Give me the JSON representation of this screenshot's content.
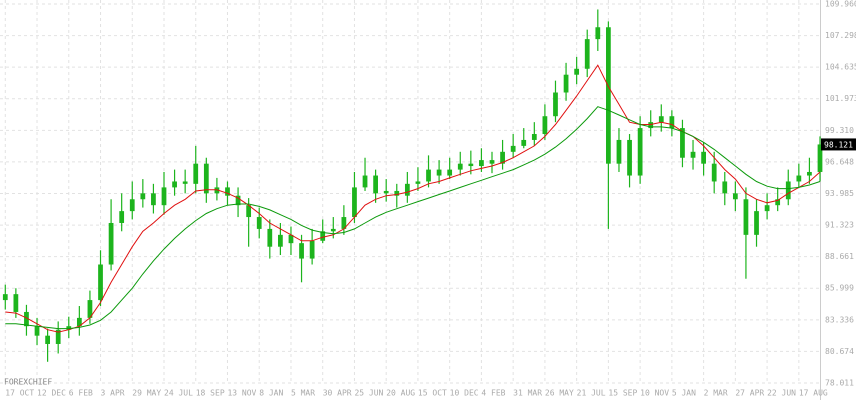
{
  "chart_data": {
    "type": "candlestick",
    "watermark": "FOREXCHIEF",
    "color": "#1db41d",
    "grid": true,
    "xlim": [
      -0.5,
      77
    ],
    "ylim": [
      78.011,
      109.96
    ],
    "yticks": [
      {
        "value": 109.96,
        "label": "109.960"
      },
      107.298,
      104.635,
      101.973,
      {
        "value": 99.31,
        "label": "99.310"
      },
      96.648,
      93.985,
      91.323,
      88.661,
      85.999,
      83.336,
      80.674,
      78.011
    ],
    "xticks": [
      {
        "value": 0,
        "label": "17 OCT"
      },
      {
        "value": 3,
        "label": "12 DEC"
      },
      {
        "value": 6,
        "label": "6 FEB"
      },
      {
        "value": 9,
        "label": "3 APR"
      },
      {
        "value": 12,
        "label": "29 MAY"
      },
      {
        "value": 15,
        "label": "24 JUL"
      },
      {
        "value": 18,
        "label": "18 SEP"
      },
      {
        "value": 21,
        "label": "13 NOV"
      },
      {
        "value": 24,
        "label": "8 JAN"
      },
      {
        "value": 27,
        "label": "5 MAR"
      },
      {
        "value": 30,
        "label": "30 APR"
      },
      {
        "value": 33,
        "label": "25 JUN"
      },
      {
        "value": 36,
        "label": "20 AUG"
      },
      {
        "value": 39,
        "label": "15 OCT"
      },
      {
        "value": 42,
        "label": "10 DEC"
      },
      {
        "value": 45,
        "label": "4 FEB"
      },
      {
        "value": 48,
        "label": "31 MAR"
      },
      {
        "value": 51,
        "label": "26 MAY"
      },
      {
        "value": 54,
        "label": "21 JUL"
      },
      {
        "value": 57,
        "label": "15 SEP"
      },
      {
        "value": 60,
        "label": "10 NOV"
      },
      {
        "value": 63,
        "label": "5 JAN"
      },
      {
        "value": 66,
        "label": "2 MAR"
      },
      {
        "value": 69,
        "label": "27 APR"
      },
      {
        "value": 72,
        "label": "22 JUN"
      },
      {
        "value": 75,
        "label": "17 AUG"
      }
    ],
    "x": [
      0,
      1,
      2,
      3,
      4,
      5,
      6,
      7,
      8,
      9,
      10,
      11,
      12,
      13,
      14,
      15,
      16,
      17,
      18,
      19,
      20,
      21,
      22,
      23,
      24,
      25,
      26,
      27,
      28,
      29,
      30,
      31,
      32,
      33,
      34,
      35,
      36,
      37,
      38,
      39,
      40,
      41,
      42,
      43,
      44,
      45,
      46,
      47,
      48,
      49,
      50,
      51,
      52,
      53,
      54,
      55,
      56,
      57,
      58,
      59,
      60,
      61,
      62,
      63,
      64,
      65,
      66,
      67,
      68,
      69,
      70,
      71,
      72,
      73,
      74,
      75,
      76,
      77
    ],
    "open": [
      85.0,
      85.5,
      84.0,
      82.8,
      82.0,
      81.3,
      82.5,
      82.8,
      83.5,
      85.0,
      88.0,
      91.5,
      92.5,
      93.5,
      94.0,
      93.0,
      94.5,
      95.0,
      94.8,
      96.5,
      94.0,
      94.5,
      93.8,
      93.0,
      92.0,
      91.0,
      89.5,
      90.5,
      89.8,
      88.5,
      90.0,
      90.8,
      91.0,
      92.0,
      94.5,
      95.5,
      94.0,
      94.2,
      93.8,
      94.8,
      95.0,
      96.0,
      95.5,
      96.0,
      96.5,
      96.3,
      96.8,
      96.5,
      97.5,
      98.0,
      98.5,
      99.0,
      100.5,
      102.5,
      104.0,
      104.5,
      107.0,
      108.0,
      96.5,
      98.5,
      95.5,
      99.5,
      100.0,
      100.5,
      99.5,
      97.0,
      97.5,
      96.5,
      95.0,
      94.0,
      93.5,
      90.5,
      92.5,
      93.0,
      93.5,
      95.0,
      95.5,
      95.8
    ],
    "high": [
      86.3,
      86.0,
      84.6,
      83.5,
      82.6,
      83.2,
      83.6,
      84.5,
      85.8,
      89.2,
      93.5,
      94.0,
      95.0,
      95.2,
      94.8,
      95.8,
      96.0,
      96.0,
      98.0,
      97.0,
      95.3,
      95.0,
      94.5,
      93.6,
      92.8,
      91.8,
      91.5,
      91.2,
      90.5,
      91.0,
      91.8,
      92.0,
      93.0,
      95.8,
      97.0,
      96.0,
      95.2,
      94.8,
      95.8,
      96.2,
      97.2,
      96.8,
      97.0,
      97.5,
      97.6,
      97.8,
      97.5,
      98.5,
      99.0,
      99.5,
      100.0,
      101.5,
      103.5,
      105.0,
      105.5,
      107.8,
      109.5,
      108.5,
      99.5,
      99.0,
      100.5,
      101.0,
      101.5,
      101.0,
      100.2,
      98.5,
      98.3,
      97.5,
      95.8,
      95.0,
      94.5,
      93.5,
      94.0,
      94.5,
      96.0,
      96.5,
      97.0,
      98.8
    ],
    "low": [
      84.2,
      83.5,
      82.0,
      81.2,
      79.8,
      80.5,
      81.8,
      82.0,
      83.0,
      84.5,
      87.5,
      90.8,
      91.8,
      92.8,
      92.3,
      92.2,
      93.8,
      94.0,
      94.0,
      93.2,
      93.4,
      93.0,
      92.0,
      89.5,
      90.2,
      88.5,
      88.8,
      88.8,
      86.5,
      88.0,
      89.8,
      90.2,
      90.5,
      91.5,
      94.2,
      93.2,
      93.3,
      92.8,
      93.2,
      94.2,
      94.5,
      94.8,
      95.2,
      95.5,
      95.6,
      95.8,
      95.7,
      96.0,
      97.0,
      97.8,
      98.0,
      98.5,
      100.0,
      101.8,
      103.2,
      103.8,
      106.0,
      91.0,
      95.8,
      94.5,
      94.8,
      98.8,
      99.2,
      98.8,
      96.2,
      96.0,
      95.5,
      94.0,
      93.0,
      92.5,
      86.8,
      89.5,
      91.8,
      92.5,
      93.0,
      94.5,
      94.8,
      95.0
    ],
    "close": [
      85.5,
      84.0,
      82.8,
      82.0,
      81.3,
      82.5,
      82.8,
      83.5,
      85.0,
      88.0,
      91.5,
      92.5,
      93.5,
      94.0,
      93.0,
      94.5,
      95.0,
      94.8,
      96.5,
      94.0,
      94.5,
      93.8,
      93.0,
      92.0,
      91.0,
      89.5,
      90.5,
      89.8,
      88.5,
      90.0,
      90.8,
      91.0,
      92.0,
      94.5,
      95.5,
      94.0,
      94.2,
      93.8,
      94.8,
      95.0,
      96.0,
      95.5,
      96.0,
      96.5,
      96.3,
      96.8,
      96.5,
      97.5,
      98.0,
      98.5,
      99.0,
      100.5,
      102.5,
      104.0,
      104.5,
      107.0,
      108.0,
      96.5,
      98.5,
      95.5,
      99.5,
      100.0,
      100.5,
      99.5,
      97.0,
      97.5,
      96.5,
      95.0,
      94.0,
      93.5,
      90.5,
      92.5,
      93.0,
      93.5,
      95.0,
      95.5,
      95.8,
      98.121
    ],
    "overlays": [
      {
        "color": "#e01010",
        "values": [
          84.0,
          83.9,
          83.5,
          83.0,
          82.5,
          82.3,
          82.5,
          82.8,
          83.5,
          84.8,
          86.5,
          88.0,
          89.5,
          90.8,
          91.5,
          92.3,
          93.0,
          93.5,
          94.2,
          94.3,
          94.3,
          94.0,
          93.6,
          93.0,
          92.3,
          91.5,
          91.0,
          90.5,
          90.0,
          90.0,
          90.3,
          90.5,
          91.0,
          92.0,
          93.0,
          93.5,
          93.8,
          93.9,
          94.1,
          94.4,
          94.8,
          95.0,
          95.3,
          95.6,
          95.9,
          96.1,
          96.3,
          96.6,
          97.0,
          97.5,
          98.0,
          98.8,
          99.8,
          101.0,
          102.2,
          103.5,
          104.8,
          103.0,
          101.5,
          100.0,
          99.8,
          99.8,
          100.0,
          99.8,
          99.2,
          98.8,
          98.0,
          97.0,
          96.0,
          95.2,
          94.0,
          93.5,
          93.2,
          93.4,
          94.0,
          94.5,
          95.0,
          95.8
        ]
      },
      {
        "color": "#0c9a0c",
        "values": [
          83.0,
          83.0,
          82.9,
          82.8,
          82.7,
          82.6,
          82.6,
          82.7,
          82.9,
          83.3,
          84.0,
          85.0,
          86.0,
          87.2,
          88.3,
          89.3,
          90.2,
          91.0,
          91.7,
          92.3,
          92.7,
          93.0,
          93.1,
          93.1,
          92.9,
          92.6,
          92.2,
          91.8,
          91.3,
          90.9,
          90.7,
          90.6,
          90.7,
          91.0,
          91.5,
          92.0,
          92.4,
          92.7,
          93.0,
          93.3,
          93.6,
          93.9,
          94.2,
          94.5,
          94.8,
          95.1,
          95.4,
          95.7,
          96.0,
          96.4,
          96.8,
          97.3,
          97.9,
          98.6,
          99.4,
          100.3,
          101.3,
          101.0,
          100.6,
          100.2,
          99.8,
          99.6,
          99.6,
          99.5,
          99.2,
          98.8,
          98.3,
          97.7,
          97.0,
          96.3,
          95.6,
          95.0,
          94.6,
          94.4,
          94.4,
          94.5,
          94.7,
          95.0
        ]
      }
    ]
  }
}
